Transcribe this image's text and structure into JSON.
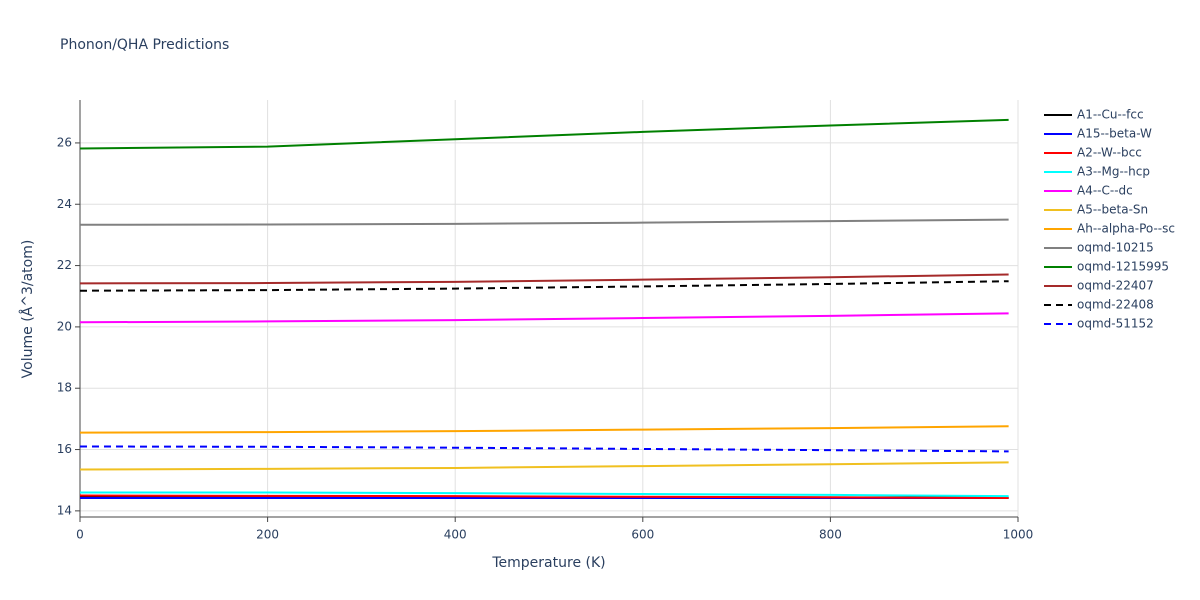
{
  "chart_data": {
    "type": "line",
    "title": "Phonon/QHA Predictions",
    "x_label": "Temperature (K)",
    "y_label": "Volume (Å^3/atom)",
    "x": [
      0,
      200,
      400,
      600,
      800,
      990
    ],
    "xlim": [
      0,
      1000
    ],
    "xticks": [
      0,
      200,
      400,
      600,
      800,
      1000
    ],
    "ylim": [
      13.8,
      27.4
    ],
    "yticks": [
      14,
      16,
      18,
      20,
      22,
      24,
      26
    ],
    "grid": true,
    "legend": "right",
    "series": [
      {
        "name": "A1--Cu--fcc",
        "color": "#000000",
        "dash": false,
        "values": [
          14.45,
          14.45,
          14.45,
          14.45,
          14.44,
          14.43
        ]
      },
      {
        "name": "A15--beta-W",
        "color": "#0000ff",
        "dash": false,
        "values": [
          14.42,
          14.42,
          14.42,
          14.42,
          14.42,
          14.42
        ]
      },
      {
        "name": "A2--W--bcc",
        "color": "#ff0000",
        "dash": false,
        "values": [
          14.5,
          14.49,
          14.48,
          14.46,
          14.44,
          14.42
        ]
      },
      {
        "name": "A3--Mg--hcp",
        "color": "#00ffff",
        "dash": false,
        "values": [
          14.6,
          14.6,
          14.58,
          14.55,
          14.52,
          14.48
        ]
      },
      {
        "name": "A4--C--dc",
        "color": "#ff00ff",
        "dash": false,
        "values": [
          20.15,
          20.18,
          20.22,
          20.29,
          20.36,
          20.44
        ]
      },
      {
        "name": "A5--beta-Sn",
        "color": "#f0c020",
        "dash": false,
        "values": [
          15.35,
          15.37,
          15.4,
          15.46,
          15.52,
          15.58
        ]
      },
      {
        "name": "Ah--alpha-Po--sc",
        "color": "#ffa500",
        "dash": false,
        "values": [
          16.55,
          16.57,
          16.6,
          16.65,
          16.7,
          16.76
        ]
      },
      {
        "name": "oqmd-10215",
        "color": "#808080",
        "dash": false,
        "values": [
          23.33,
          23.34,
          23.36,
          23.4,
          23.45,
          23.5
        ]
      },
      {
        "name": "oqmd-1215995",
        "color": "#008000",
        "dash": false,
        "values": [
          25.82,
          25.88,
          26.12,
          26.36,
          26.57,
          26.75
        ]
      },
      {
        "name": "oqmd-22407",
        "color": "#a52a2a",
        "dash": false,
        "values": [
          21.42,
          21.43,
          21.47,
          21.54,
          21.62,
          21.71
        ]
      },
      {
        "name": "oqmd-22408",
        "color": "#000000",
        "dash": true,
        "values": [
          21.18,
          21.2,
          21.25,
          21.32,
          21.4,
          21.49
        ]
      },
      {
        "name": "oqmd-51152",
        "color": "#0000ff",
        "dash": true,
        "values": [
          16.1,
          16.09,
          16.06,
          16.02,
          15.98,
          15.94
        ]
      }
    ]
  }
}
